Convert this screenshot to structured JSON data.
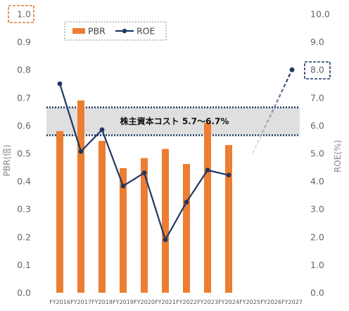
{
  "chart_data": {
    "type": "bar+line",
    "categories": [
      "FY2016",
      "FY2017",
      "FY2018",
      "FY2019",
      "FY2020",
      "FY2021",
      "FY2022",
      "FY2023",
      "FY2024",
      "FY2025",
      "FY2026",
      "FY2027"
    ],
    "series": [
      {
        "name": "PBR",
        "type": "bar",
        "axis": "left",
        "color": "#ED7D31",
        "values": [
          0.58,
          0.69,
          0.545,
          0.447,
          0.483,
          0.516,
          0.462,
          0.61,
          0.53,
          null,
          null,
          null
        ]
      },
      {
        "name": "ROE",
        "type": "line",
        "axis": "right",
        "color": "#1F3864",
        "values": [
          7.5,
          5.07,
          5.85,
          3.83,
          4.3,
          1.9,
          3.25,
          4.4,
          4.22,
          null,
          null,
          null
        ],
        "target": {
          "from": "FY2025",
          "to": "FY2027",
          "values": [
            5.0,
            null,
            8.0
          ],
          "style": "dashed-fade"
        }
      }
    ],
    "band": {
      "label": "株主資本コスト 5.7〜6.7%",
      "ymin": 5.65,
      "ymax": 6.65,
      "axis": "right"
    },
    "left_axis": {
      "label": "PBR(倍)",
      "min": 0.0,
      "max": 1.0,
      "ticks": [
        "0.0",
        "0.1",
        "0.2",
        "0.3",
        "0.4",
        "0.5",
        "0.6",
        "0.7",
        "0.8",
        "0.9",
        "1.0"
      ],
      "highlight": "1.0",
      "highlight_color": "#E07B39"
    },
    "right_axis": {
      "label": "ROE(%)",
      "min": 0.0,
      "max": 10.0,
      "ticks": [
        "0.0",
        "1.0",
        "2.0",
        "3.0",
        "4.0",
        "5.0",
        "6.0",
        "7.0",
        "8.0",
        "9.0",
        "10.0"
      ],
      "highlight": "8.0",
      "highlight_color": "#1F3864"
    },
    "legend": {
      "position": "top-left",
      "items": [
        "PBR",
        "ROE"
      ]
    },
    "grid": false
  }
}
